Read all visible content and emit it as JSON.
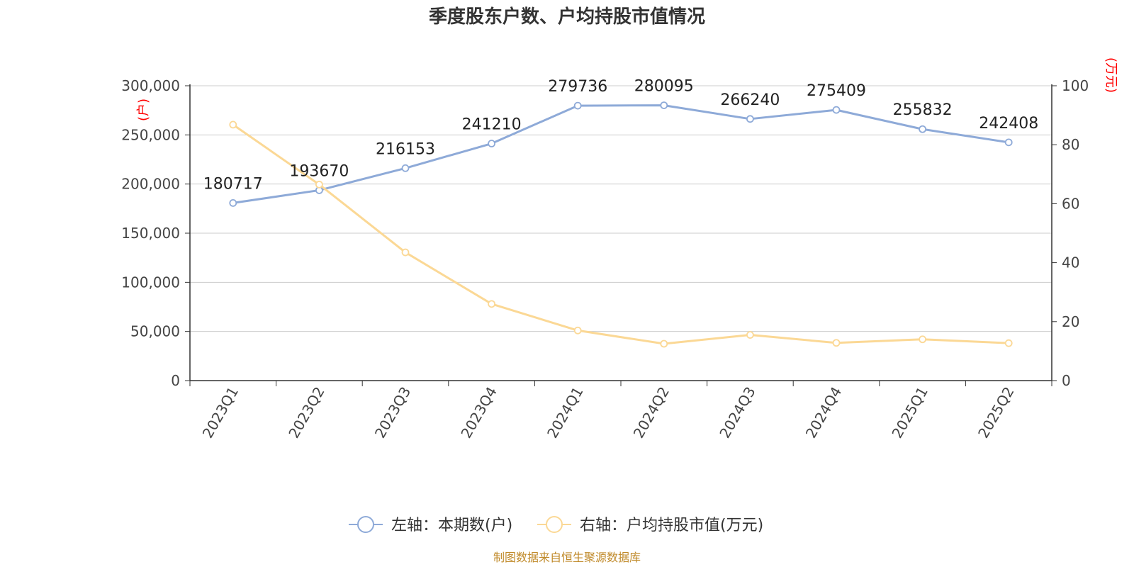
{
  "chart_data": {
    "type": "line",
    "title": "季度股东户数、户均持股市值情况",
    "categories": [
      "2023Q1",
      "2023Q2",
      "2023Q3",
      "2023Q4",
      "2024Q1",
      "2024Q2",
      "2024Q3",
      "2024Q4",
      "2025Q1",
      "2025Q2"
    ],
    "left_axis": {
      "unit": "(户)",
      "ylim": [
        0,
        300000
      ],
      "ticks": [
        "0",
        "50,000",
        "100,000",
        "150,000",
        "200,000",
        "250,000",
        "300,000"
      ],
      "tick_values": [
        0,
        50000,
        100000,
        150000,
        200000,
        250000,
        300000
      ]
    },
    "right_axis": {
      "unit": "(万元)",
      "ylim": [
        0,
        100
      ],
      "ticks": [
        "0",
        "20",
        "40",
        "60",
        "80",
        "100"
      ],
      "tick_values": [
        0,
        20,
        40,
        60,
        80,
        100
      ]
    },
    "series": [
      {
        "name": "左轴：本期数(户)",
        "axis": "left",
        "color": "#8eaad8",
        "values": [
          180717,
          193670,
          216153,
          241210,
          279736,
          280095,
          266240,
          275409,
          255832,
          242408
        ],
        "labels": [
          "180717",
          "193670",
          "216153",
          "241210",
          "279736",
          "280095",
          "266240",
          "275409",
          "255832",
          "242408"
        ]
      },
      {
        "name": "右轴：户均持股市值(万元)",
        "axis": "right",
        "color": "#fbd895",
        "values": [
          86.8,
          66.5,
          43.5,
          26.0,
          17.0,
          12.5,
          15.5,
          12.8,
          14.0,
          12.7
        ]
      }
    ],
    "grid": true,
    "legend_position": "bottom-center"
  },
  "source_text": "制图数据来自恒生聚源数据库"
}
